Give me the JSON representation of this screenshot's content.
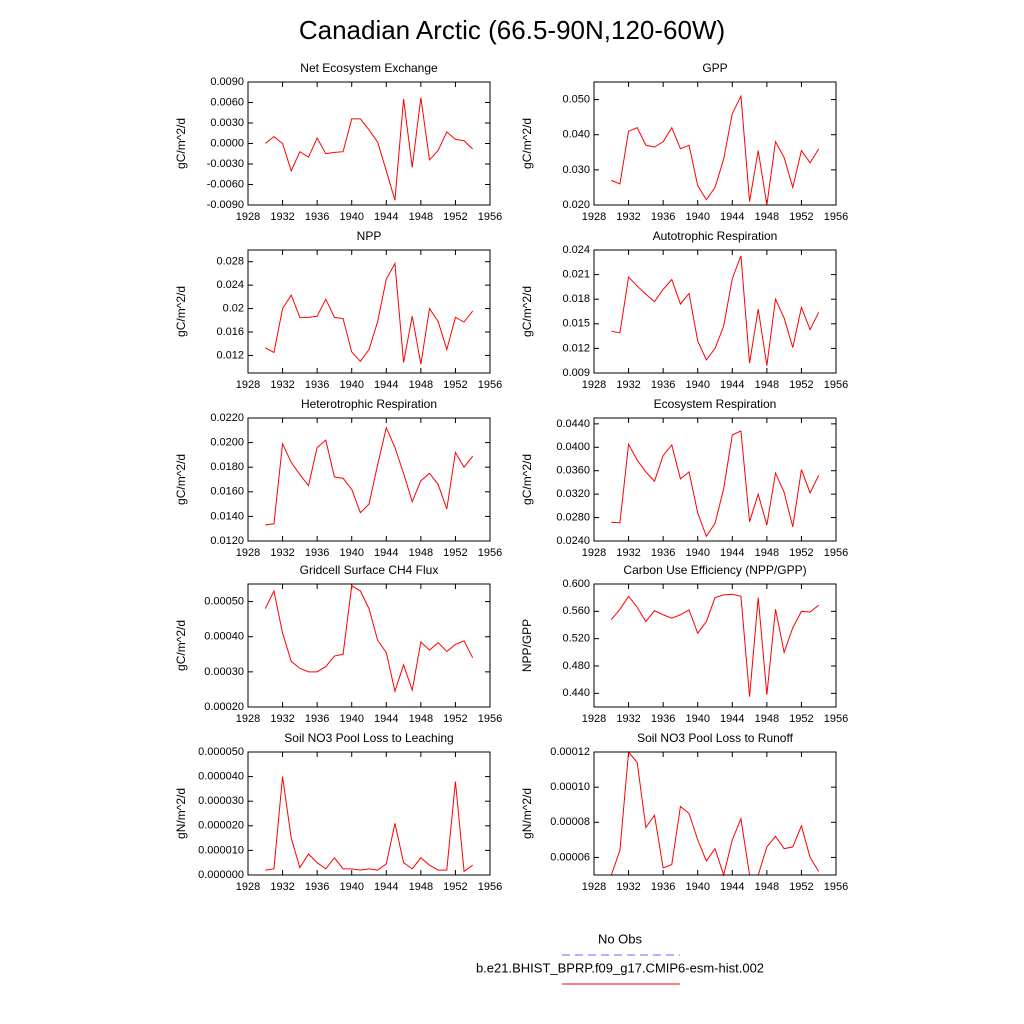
{
  "title": "Canadian Arctic (66.5-90N,120-60W)",
  "series": [
    {
      "name": "No Obs",
      "color": "#6666ff",
      "dash": true
    },
    {
      "name": "b.e21.BHIST_BPRP.f09_g17.CMIP6-esm-hist.002",
      "color": "#ff0000",
      "dash": false
    }
  ],
  "chart_data": [
    {
      "type": "line",
      "title": "Net Ecosystem Exchange",
      "y_label": "gC/m^2/d",
      "x": [
        1930,
        1931,
        1932,
        1933,
        1934,
        1935,
        1936,
        1937,
        1938,
        1939,
        1940,
        1941,
        1942,
        1943,
        1944,
        1945,
        1946,
        1947,
        1948,
        1949,
        1950,
        1951,
        1952,
        1953,
        1954
      ],
      "values": [
        0.0,
        0.001,
        0.0,
        -0.004,
        -0.0012,
        -0.002,
        0.0008,
        -0.0015,
        -0.0013,
        -0.0012,
        0.0036,
        0.0036,
        0.002,
        0.0002,
        -0.004,
        -0.0083,
        0.0065,
        -0.0035,
        0.0067,
        -0.0024,
        -0.001,
        0.0017,
        0.0006,
        0.0004,
        -0.0008
      ],
      "xlim": [
        1928,
        1956
      ],
      "xticks": [
        1928,
        1932,
        1936,
        1940,
        1944,
        1948,
        1952,
        1956
      ],
      "ylim": [
        -0.009,
        0.009
      ],
      "yticks": [
        {
          "value": -0.009,
          "label": "-0.0090"
        },
        {
          "value": -0.006,
          "label": "-0.0060"
        },
        {
          "value": -0.003,
          "label": "-0.0030"
        },
        {
          "value": 0,
          "label": "0.0000"
        },
        {
          "value": 0.003,
          "label": "0.0030"
        },
        {
          "value": 0.006,
          "label": "0.0060"
        },
        {
          "value": 0.009,
          "label": "0.0090"
        }
      ]
    },
    {
      "type": "line",
      "title": "GPP",
      "y_label": "gC/m^2/d",
      "x": [
        1930,
        1931,
        1932,
        1933,
        1934,
        1935,
        1936,
        1937,
        1938,
        1939,
        1940,
        1941,
        1942,
        1943,
        1944,
        1945,
        1946,
        1947,
        1948,
        1949,
        1950,
        1951,
        1952,
        1953,
        1954
      ],
      "values": [
        0.027,
        0.026,
        0.041,
        0.042,
        0.037,
        0.0365,
        0.038,
        0.042,
        0.036,
        0.037,
        0.0255,
        0.0215,
        0.025,
        0.033,
        0.046,
        0.051,
        0.021,
        0.0355,
        0.02,
        0.038,
        0.0335,
        0.025,
        0.0355,
        0.032,
        0.036
      ],
      "xlim": [
        1928,
        1956
      ],
      "xticks": [
        1928,
        1932,
        1936,
        1940,
        1944,
        1948,
        1952,
        1956
      ],
      "ylim": [
        0.02,
        0.055
      ],
      "yticks": [
        {
          "value": 0.02,
          "label": "0.020"
        },
        {
          "value": 0.03,
          "label": "0.030"
        },
        {
          "value": 0.04,
          "label": "0.040"
        },
        {
          "value": 0.05,
          "label": "0.050"
        }
      ]
    },
    {
      "type": "line",
      "title": "NPP",
      "y_label": "gC/m^2/d",
      "x": [
        1930,
        1931,
        1932,
        1933,
        1934,
        1935,
        1936,
        1937,
        1938,
        1939,
        1940,
        1941,
        1942,
        1943,
        1944,
        1945,
        1946,
        1947,
        1948,
        1949,
        1950,
        1951,
        1952,
        1953,
        1954
      ],
      "values": [
        0.0133,
        0.0125,
        0.02,
        0.0223,
        0.0185,
        0.0185,
        0.0187,
        0.0216,
        0.0185,
        0.0183,
        0.0126,
        0.011,
        0.013,
        0.0178,
        0.025,
        0.0277,
        0.0108,
        0.0187,
        0.0105,
        0.02,
        0.0178,
        0.013,
        0.0185,
        0.0177,
        0.0196
      ],
      "xlim": [
        1928,
        1956
      ],
      "xticks": [
        1928,
        1932,
        1936,
        1940,
        1944,
        1948,
        1952,
        1956
      ],
      "ylim": [
        0.009,
        0.03
      ],
      "yticks": [
        0.012,
        0.016,
        0.02,
        0.024,
        0.028
      ]
    },
    {
      "type": "line",
      "title": "Autotrophic Respiration",
      "y_label": "gC/m^2/d",
      "x": [
        1930,
        1931,
        1932,
        1933,
        1934,
        1935,
        1936,
        1937,
        1938,
        1939,
        1940,
        1941,
        1942,
        1943,
        1944,
        1945,
        1946,
        1947,
        1948,
        1949,
        1950,
        1951,
        1952,
        1953,
        1954
      ],
      "values": [
        0.0141,
        0.0139,
        0.0207,
        0.0196,
        0.0186,
        0.0177,
        0.0192,
        0.0204,
        0.0174,
        0.0187,
        0.0129,
        0.0106,
        0.012,
        0.0147,
        0.0205,
        0.0233,
        0.0102,
        0.0168,
        0.0099,
        0.018,
        0.0157,
        0.0121,
        0.017,
        0.0143,
        0.0164
      ],
      "xlim": [
        1928,
        1956
      ],
      "xticks": [
        1928,
        1932,
        1936,
        1940,
        1944,
        1948,
        1952,
        1956
      ],
      "ylim": [
        0.009,
        0.024
      ],
      "yticks": [
        0.009,
        0.012,
        0.015,
        0.018,
        0.021,
        0.024
      ]
    },
    {
      "type": "line",
      "title": "Heterotrophic Respiration",
      "y_label": "gC/m^2/d",
      "x": [
        1930,
        1931,
        1932,
        1933,
        1934,
        1935,
        1936,
        1937,
        1938,
        1939,
        1940,
        1941,
        1942,
        1943,
        1944,
        1945,
        1946,
        1947,
        1948,
        1949,
        1950,
        1951,
        1952,
        1953,
        1954
      ],
      "values": [
        0.0133,
        0.0134,
        0.0199,
        0.0184,
        0.0174,
        0.0165,
        0.0196,
        0.0202,
        0.0172,
        0.0171,
        0.0162,
        0.0143,
        0.015,
        0.0182,
        0.0212,
        0.0196,
        0.0175,
        0.0152,
        0.0169,
        0.0175,
        0.0166,
        0.0146,
        0.0192,
        0.018,
        0.0189
      ],
      "xlim": [
        1928,
        1956
      ],
      "xticks": [
        1928,
        1932,
        1936,
        1940,
        1944,
        1948,
        1952,
        1956
      ],
      "ylim": [
        0.012,
        0.022
      ],
      "yticks": [
        {
          "value": 0.012,
          "label": "0.0120"
        },
        {
          "value": 0.014,
          "label": "0.0140"
        },
        {
          "value": 0.016,
          "label": "0.0160"
        },
        {
          "value": 0.018,
          "label": "0.0180"
        },
        {
          "value": 0.02,
          "label": "0.0200"
        },
        {
          "value": 0.022,
          "label": "0.0220"
        }
      ]
    },
    {
      "type": "line",
      "title": "Ecosystem Respiration",
      "y_label": "gC/m^2/d",
      "x": [
        1930,
        1931,
        1932,
        1933,
        1934,
        1935,
        1936,
        1937,
        1938,
        1939,
        1940,
        1941,
        1942,
        1943,
        1944,
        1945,
        1946,
        1947,
        1948,
        1949,
        1950,
        1951,
        1952,
        1953,
        1954
      ],
      "values": [
        0.0272,
        0.0271,
        0.0405,
        0.0378,
        0.0358,
        0.0342,
        0.0386,
        0.0404,
        0.0346,
        0.0358,
        0.0288,
        0.0248,
        0.027,
        0.0329,
        0.0421,
        0.0428,
        0.0273,
        0.032,
        0.0267,
        0.0356,
        0.0323,
        0.0264,
        0.0362,
        0.0322,
        0.0352
      ],
      "xlim": [
        1928,
        1956
      ],
      "xticks": [
        1928,
        1932,
        1936,
        1940,
        1944,
        1948,
        1952,
        1956
      ],
      "ylim": [
        0.024,
        0.045
      ],
      "yticks": [
        {
          "value": 0.024,
          "label": "0.0240"
        },
        {
          "value": 0.028,
          "label": "0.0280"
        },
        {
          "value": 0.032,
          "label": "0.0320"
        },
        {
          "value": 0.036,
          "label": "0.0360"
        },
        {
          "value": 0.04,
          "label": "0.0400"
        },
        {
          "value": 0.044,
          "label": "0.0440"
        }
      ]
    },
    {
      "type": "line",
      "title": "Gridcell Surface CH4 Flux",
      "y_label": "gC/m^2/d",
      "x": [
        1930,
        1931,
        1932,
        1933,
        1934,
        1935,
        1936,
        1937,
        1938,
        1939,
        1940,
        1941,
        1942,
        1943,
        1944,
        1945,
        1946,
        1947,
        1948,
        1949,
        1950,
        1951,
        1952,
        1953,
        1954
      ],
      "values": [
        0.00048,
        0.00053,
        0.00041,
        0.00033,
        0.00031,
        0.0003,
        0.0003,
        0.000315,
        0.000345,
        0.00035,
        0.000545,
        0.00053,
        0.00048,
        0.00039,
        0.000355,
        0.000245,
        0.00032,
        0.000248,
        0.000385,
        0.000362,
        0.000383,
        0.000358,
        0.000378,
        0.000388,
        0.00034
      ],
      "xlim": [
        1928,
        1956
      ],
      "xticks": [
        1928,
        1932,
        1936,
        1940,
        1944,
        1948,
        1952,
        1956
      ],
      "ylim": [
        0.0002,
        0.00055
      ],
      "yticks": [
        {
          "value": 0.0002,
          "label": "0.00020"
        },
        {
          "value": 0.0003,
          "label": "0.00030"
        },
        {
          "value": 0.0004,
          "label": "0.00040"
        },
        {
          "value": 0.0005,
          "label": "0.00050"
        }
      ]
    },
    {
      "type": "line",
      "title": "Carbon Use Efficiency (NPP/GPP)",
      "y_label": "NPP/GPP",
      "x": [
        1930,
        1931,
        1932,
        1933,
        1934,
        1935,
        1936,
        1937,
        1938,
        1939,
        1940,
        1941,
        1942,
        1943,
        1944,
        1945,
        1946,
        1947,
        1948,
        1949,
        1950,
        1951,
        1952,
        1953,
        1954
      ],
      "values": [
        0.548,
        0.563,
        0.582,
        0.566,
        0.545,
        0.561,
        0.555,
        0.55,
        0.555,
        0.562,
        0.528,
        0.545,
        0.58,
        0.584,
        0.585,
        0.582,
        0.435,
        0.58,
        0.438,
        0.563,
        0.5,
        0.536,
        0.56,
        0.559,
        0.569
      ],
      "xlim": [
        1928,
        1956
      ],
      "xticks": [
        1928,
        1932,
        1936,
        1940,
        1944,
        1948,
        1952,
        1956
      ],
      "ylim": [
        0.42,
        0.6
      ],
      "yticks": [
        {
          "value": 0.44,
          "label": "0.440"
        },
        {
          "value": 0.48,
          "label": "0.480"
        },
        {
          "value": 0.52,
          "label": "0.520"
        },
        {
          "value": 0.56,
          "label": "0.560"
        },
        {
          "value": 0.6,
          "label": "0.600"
        }
      ]
    },
    {
      "type": "line",
      "title": "Soil NO3 Pool Loss to Leaching",
      "y_label": "gN/m^2/d",
      "x": [
        1930,
        1931,
        1932,
        1933,
        1934,
        1935,
        1936,
        1937,
        1938,
        1939,
        1940,
        1941,
        1942,
        1943,
        1944,
        1945,
        1946,
        1947,
        1948,
        1949,
        1950,
        1951,
        1952,
        1953,
        1954
      ],
      "values": [
        2e-06,
        2.5e-06,
        4e-05,
        1.5e-05,
        3e-06,
        8.5e-06,
        5e-06,
        2.5e-06,
        7e-06,
        2.5e-06,
        2.5e-06,
        2e-06,
        2.5e-06,
        2e-06,
        4.5e-06,
        2.1e-05,
        5e-06,
        2.5e-06,
        7e-06,
        4e-06,
        2e-06,
        2e-06,
        3.8e-05,
        1.5e-06,
        4e-06
      ],
      "xlim": [
        1928,
        1956
      ],
      "xticks": [
        1928,
        1932,
        1936,
        1940,
        1944,
        1948,
        1952,
        1956
      ],
      "ylim": [
        0,
        5e-05
      ],
      "yticks": [
        {
          "value": 0,
          "label": "0.000000"
        },
        {
          "value": 1e-05,
          "label": "0.000010"
        },
        {
          "value": 2e-05,
          "label": "0.000020"
        },
        {
          "value": 3e-05,
          "label": "0.000030"
        },
        {
          "value": 4e-05,
          "label": "0.000040"
        },
        {
          "value": 5e-05,
          "label": "0.000050"
        }
      ]
    },
    {
      "type": "line",
      "title": "Soil NO3 Pool Loss to Runoff",
      "y_label": "gN/m^2/d",
      "x": [
        1930,
        1931,
        1932,
        1933,
        1934,
        1935,
        1936,
        1937,
        1938,
        1939,
        1940,
        1941,
        1942,
        1943,
        1944,
        1945,
        1946,
        1947,
        1948,
        1949,
        1950,
        1951,
        1952,
        1953,
        1954
      ],
      "values": [
        5e-05,
        6.4e-05,
        0.00012,
        0.000114,
        7.7e-05,
        8.4e-05,
        5.4e-05,
        5.6e-05,
        8.9e-05,
        8.5e-05,
        7e-05,
        5.8e-05,
        6.5e-05,
        5e-05,
        7e-05,
        8.2e-05,
        5e-05,
        5e-05,
        6.6e-05,
        7.2e-05,
        6.5e-05,
        6.6e-05,
        7.8e-05,
        6e-05,
        5.2e-05
      ],
      "xlim": [
        1928,
        1956
      ],
      "xticks": [
        1928,
        1932,
        1936,
        1940,
        1944,
        1948,
        1952,
        1956
      ],
      "ylim": [
        5e-05,
        0.00012
      ],
      "yticks": [
        6e-05,
        8e-05,
        {
          "value": 0.0001,
          "label": "0.00010"
        },
        0.00012
      ]
    }
  ]
}
